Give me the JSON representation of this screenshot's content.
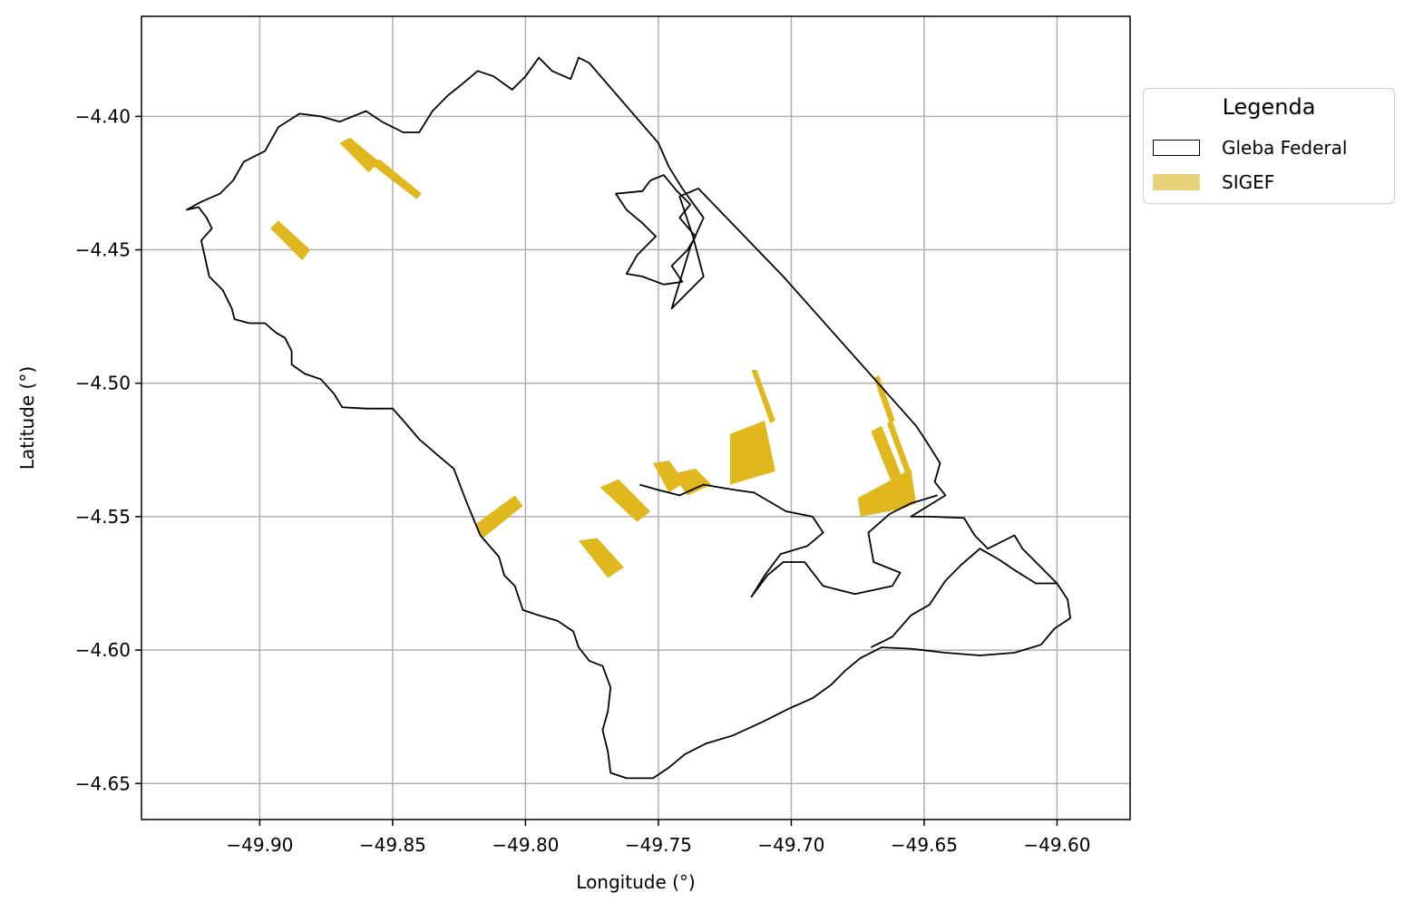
{
  "chart_data": {
    "type": "map",
    "xlabel": "Longitude (°)",
    "ylabel": "Latitude (°)",
    "xlim": [
      -49.9445,
      -49.5725
    ],
    "ylim": [
      -4.6635,
      -4.3625
    ],
    "xticks": [
      -49.9,
      -49.85,
      -49.8,
      -49.75,
      -49.7,
      -49.65,
      -49.6
    ],
    "xtick_labels": [
      "−49.90",
      "−49.85",
      "−49.80",
      "−49.75",
      "−49.70",
      "−49.65",
      "−49.60"
    ],
    "yticks": [
      -4.4,
      -4.45,
      -4.5,
      -4.55,
      -4.6,
      -4.65
    ],
    "ytick_labels": [
      "−4.40",
      "−4.45",
      "−4.50",
      "−4.55",
      "−4.60",
      "−4.65"
    ],
    "grid": true,
    "legend": {
      "title": "Legenda",
      "placement": "outside-upper-right",
      "entries": [
        {
          "label": "Gleba Federal",
          "style": "outline",
          "color": "#000000"
        },
        {
          "label": "SIGEF",
          "style": "fill",
          "color": "#e8d37a"
        }
      ]
    },
    "colors": {
      "gleba_outline": "#000000",
      "sigef_fill": "#e0b71c",
      "grid": "#b0b0b0"
    },
    "gleba_federal": [
      [
        -49.9275,
        -4.435
      ],
      [
        -49.923,
        -4.434
      ],
      [
        -49.92,
        -4.438
      ],
      [
        -49.918,
        -4.442
      ],
      [
        -49.922,
        -4.4465
      ],
      [
        -49.919,
        -4.46
      ],
      [
        -49.914,
        -4.465
      ],
      [
        -49.9105,
        -4.472
      ],
      [
        -49.9095,
        -4.476
      ],
      [
        -49.904,
        -4.4775
      ],
      [
        -49.898,
        -4.4775
      ],
      [
        -49.894,
        -4.481
      ],
      [
        -49.8905,
        -4.483
      ],
      [
        -49.888,
        -4.488
      ],
      [
        -49.888,
        -4.493
      ],
      [
        -49.883,
        -4.4965
      ],
      [
        -49.877,
        -4.4985
      ],
      [
        -49.872,
        -4.504
      ],
      [
        -49.869,
        -4.509
      ],
      [
        -49.86,
        -4.5095
      ],
      [
        -49.85,
        -4.5095
      ],
      [
        -49.846,
        -4.514
      ],
      [
        -49.84,
        -4.521
      ],
      [
        -49.833,
        -4.527
      ],
      [
        -49.827,
        -4.532
      ],
      [
        -49.822,
        -4.545
      ],
      [
        -49.817,
        -4.557
      ],
      [
        -49.81,
        -4.565
      ],
      [
        -49.808,
        -4.572
      ],
      [
        -49.804,
        -4.576
      ],
      [
        -49.801,
        -4.585
      ],
      [
        -49.795,
        -4.587
      ],
      [
        -49.788,
        -4.589
      ],
      [
        -49.782,
        -4.593
      ],
      [
        -49.78,
        -4.599
      ],
      [
        -49.776,
        -4.604
      ],
      [
        -49.771,
        -4.606
      ],
      [
        -49.768,
        -4.614
      ],
      [
        -49.769,
        -4.623
      ],
      [
        -49.771,
        -4.63
      ],
      [
        -49.769,
        -4.638
      ],
      [
        -49.768,
        -4.646
      ],
      [
        -49.762,
        -4.648
      ],
      [
        -49.752,
        -4.648
      ],
      [
        -49.746,
        -4.644
      ],
      [
        -49.74,
        -4.639
      ],
      [
        -49.732,
        -4.635
      ],
      [
        -49.722,
        -4.632
      ],
      [
        -49.711,
        -4.627
      ],
      [
        -49.701,
        -4.622
      ],
      [
        -49.692,
        -4.618
      ],
      [
        -49.685,
        -4.613
      ],
      [
        -49.68,
        -4.608
      ],
      [
        -49.674,
        -4.603
      ],
      [
        -49.666,
        -4.599
      ],
      [
        -49.655,
        -4.5995
      ],
      [
        -49.642,
        -4.601
      ],
      [
        -49.629,
        -4.602
      ],
      [
        -49.616,
        -4.601
      ],
      [
        -49.606,
        -4.598
      ],
      [
        -49.601,
        -4.592
      ],
      [
        -49.595,
        -4.588
      ],
      [
        -49.596,
        -4.581
      ],
      [
        -49.6,
        -4.575
      ],
      [
        -49.613,
        -4.562
      ],
      [
        -49.616,
        -4.557
      ],
      [
        -49.626,
        -4.562
      ],
      [
        -49.631,
        -4.557
      ],
      [
        -49.635,
        -4.5505
      ],
      [
        -49.648,
        -4.55
      ],
      [
        -49.655,
        -4.55
      ],
      [
        -49.642,
        -4.542
      ],
      [
        -49.646,
        -4.537
      ],
      [
        -49.644,
        -4.53
      ],
      [
        -49.649,
        -4.522
      ],
      [
        -49.653,
        -4.516
      ],
      [
        -49.703,
        -4.46
      ],
      [
        -49.735,
        -4.427
      ],
      [
        -49.742,
        -4.43
      ],
      [
        -49.737,
        -4.445
      ],
      [
        -49.733,
        -4.46
      ],
      [
        -49.743,
        -4.47
      ],
      [
        -49.745,
        -4.472
      ],
      [
        -49.738,
        -4.449
      ],
      [
        -49.733,
        -4.438
      ],
      [
        -49.741,
        -4.427
      ],
      [
        -49.746,
        -4.419
      ],
      [
        -49.75,
        -4.41
      ],
      [
        -49.776,
        -4.38
      ],
      [
        -49.78,
        -4.378
      ],
      [
        -49.783,
        -4.386
      ],
      [
        -49.79,
        -4.383
      ],
      [
        -49.795,
        -4.378
      ],
      [
        -49.8,
        -4.385
      ],
      [
        -49.805,
        -4.39
      ],
      [
        -49.812,
        -4.385
      ],
      [
        -49.818,
        -4.383
      ],
      [
        -49.824,
        -4.388
      ],
      [
        -49.829,
        -4.392
      ],
      [
        -49.835,
        -4.398
      ],
      [
        -49.84,
        -4.406
      ],
      [
        -49.846,
        -4.406
      ],
      [
        -49.854,
        -4.402
      ],
      [
        -49.86,
        -4.398
      ],
      [
        -49.87,
        -4.402
      ],
      [
        -49.877,
        -4.4
      ],
      [
        -49.885,
        -4.399
      ],
      [
        -49.893,
        -4.404
      ],
      [
        -49.898,
        -4.413
      ],
      [
        -49.906,
        -4.417
      ],
      [
        -49.91,
        -4.424
      ],
      [
        -49.915,
        -4.429
      ],
      [
        -49.922,
        -4.432
      ],
      [
        -49.9275,
        -4.435
      ]
    ],
    "gleba_interior_coastlines": [
      [
        [
          -49.753,
          -4.424
        ],
        [
          -49.748,
          -4.422
        ],
        [
          -49.743,
          -4.428
        ],
        [
          -49.738,
          -4.433
        ],
        [
          -49.742,
          -4.438
        ],
        [
          -49.736,
          -4.445
        ],
        [
          -49.739,
          -4.45
        ],
        [
          -49.745,
          -4.456
        ],
        [
          -49.741,
          -4.462
        ],
        [
          -49.748,
          -4.463
        ],
        [
          -49.756,
          -4.46
        ],
        [
          -49.762,
          -4.459
        ],
        [
          -49.758,
          -4.452
        ],
        [
          -49.751,
          -4.445
        ],
        [
          -49.756,
          -4.44
        ],
        [
          -49.762,
          -4.435
        ],
        [
          -49.766,
          -4.429
        ],
        [
          -49.756,
          -4.428
        ],
        [
          -49.753,
          -4.424
        ]
      ],
      [
        [
          -49.757,
          -4.538
        ],
        [
          -49.75,
          -4.54
        ],
        [
          -49.742,
          -4.542
        ],
        [
          -49.733,
          -4.538
        ],
        [
          -49.721,
          -4.54
        ],
        [
          -49.714,
          -4.541
        ],
        [
          -49.702,
          -4.548
        ],
        [
          -49.692,
          -4.55
        ],
        [
          -49.688,
          -4.556
        ],
        [
          -49.694,
          -4.561
        ],
        [
          -49.704,
          -4.564
        ],
        [
          -49.71,
          -4.572
        ],
        [
          -49.715,
          -4.58
        ],
        [
          -49.709,
          -4.572
        ],
        [
          -49.703,
          -4.567
        ],
        [
          -49.695,
          -4.567
        ],
        [
          -49.688,
          -4.576
        ],
        [
          -49.676,
          -4.579
        ],
        [
          -49.662,
          -4.576
        ],
        [
          -49.659,
          -4.571
        ],
        [
          -49.669,
          -4.567
        ],
        [
          -49.671,
          -4.556
        ],
        [
          -49.663,
          -4.549
        ],
        [
          -49.655,
          -4.545
        ],
        [
          -49.645,
          -4.542
        ]
      ],
      [
        [
          -49.67,
          -4.599
        ],
        [
          -49.662,
          -4.595
        ],
        [
          -49.655,
          -4.587
        ],
        [
          -49.648,
          -4.583
        ],
        [
          -49.642,
          -4.574
        ],
        [
          -49.636,
          -4.568
        ],
        [
          -49.629,
          -4.562
        ],
        [
          -49.622,
          -4.566
        ],
        [
          -49.616,
          -4.57
        ],
        [
          -49.608,
          -4.575
        ],
        [
          -49.6,
          -4.575
        ]
      ]
    ],
    "sigef": [
      [
        [
          -49.896,
          -4.442
        ],
        [
          -49.893,
          -4.439
        ],
        [
          -49.881,
          -4.45
        ],
        [
          -49.884,
          -4.454
        ]
      ],
      [
        [
          -49.87,
          -4.41
        ],
        [
          -49.866,
          -4.408
        ],
        [
          -49.855,
          -4.417
        ],
        [
          -49.859,
          -4.421
        ]
      ],
      [
        [
          -49.858,
          -4.418
        ],
        [
          -49.855,
          -4.416
        ],
        [
          -49.839,
          -4.429
        ],
        [
          -49.841,
          -4.431
        ]
      ],
      [
        [
          -49.819,
          -4.553
        ],
        [
          -49.804,
          -4.542
        ],
        [
          -49.801,
          -4.546
        ],
        [
          -49.816,
          -4.558
        ]
      ],
      [
        [
          -49.772,
          -4.539
        ],
        [
          -49.765,
          -4.536
        ],
        [
          -49.753,
          -4.548
        ],
        [
          -49.758,
          -4.552
        ]
      ],
      [
        [
          -49.78,
          -4.559
        ],
        [
          -49.773,
          -4.558
        ],
        [
          -49.763,
          -4.569
        ],
        [
          -49.769,
          -4.573
        ]
      ],
      [
        [
          -49.752,
          -4.53
        ],
        [
          -49.746,
          -4.529
        ],
        [
          -49.74,
          -4.537
        ],
        [
          -49.746,
          -4.541
        ]
      ],
      [
        [
          -49.745,
          -4.534
        ],
        [
          -49.736,
          -4.532
        ],
        [
          -49.73,
          -4.538
        ],
        [
          -49.739,
          -4.542
        ]
      ],
      [
        [
          -49.723,
          -4.519
        ],
        [
          -49.71,
          -4.514
        ],
        [
          -49.706,
          -4.533
        ],
        [
          -49.723,
          -4.538
        ]
      ],
      [
        [
          -49.715,
          -4.495
        ],
        [
          -49.713,
          -4.495
        ],
        [
          -49.706,
          -4.514
        ],
        [
          -49.708,
          -4.515
        ]
      ],
      [
        [
          -49.67,
          -4.518
        ],
        [
          -49.666,
          -4.516
        ],
        [
          -49.658,
          -4.536
        ],
        [
          -49.662,
          -4.538
        ]
      ],
      [
        [
          -49.669,
          -4.498
        ],
        [
          -49.667,
          -4.497
        ],
        [
          -49.661,
          -4.514
        ],
        [
          -49.663,
          -4.515
        ]
      ],
      [
        [
          -49.664,
          -4.515
        ],
        [
          -49.662,
          -4.514
        ],
        [
          -49.655,
          -4.533
        ],
        [
          -49.657,
          -4.534
        ]
      ],
      [
        [
          -49.675,
          -4.543
        ],
        [
          -49.662,
          -4.536
        ],
        [
          -49.655,
          -4.532
        ],
        [
          -49.653,
          -4.545
        ],
        [
          -49.658,
          -4.547
        ],
        [
          -49.674,
          -4.55
        ]
      ]
    ]
  }
}
